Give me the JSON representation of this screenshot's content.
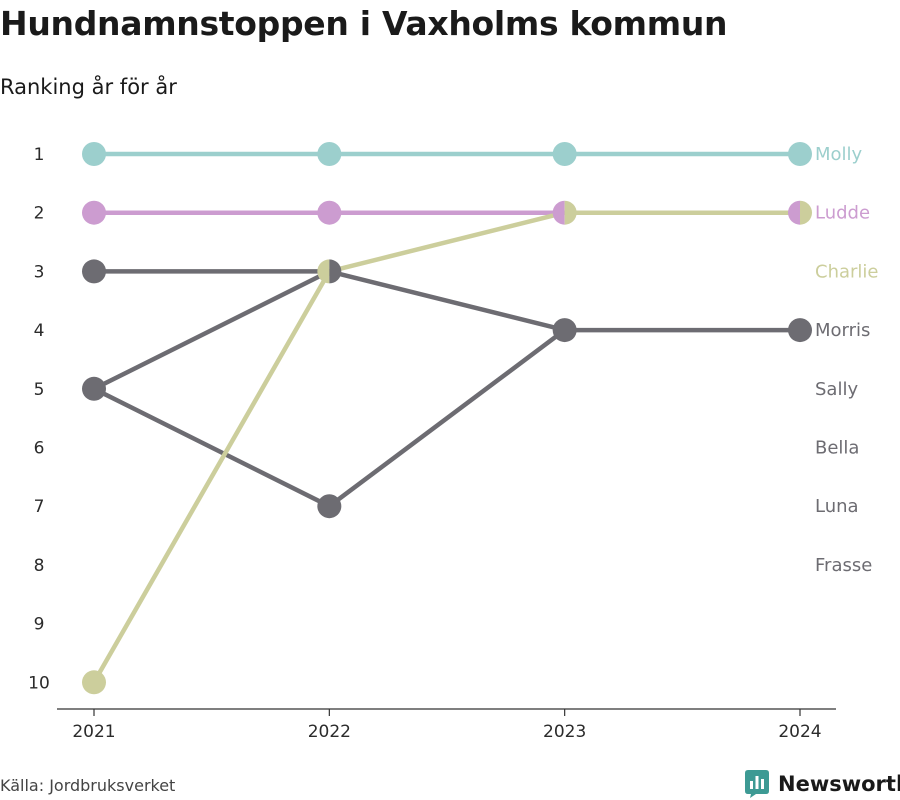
{
  "header": {
    "title": "Hundnamnstoppen i Vaxholms kommun",
    "subtitle": "Ranking år för år"
  },
  "footer": {
    "source": "Källa: Jordbruksverket",
    "brand": "Newsworthy",
    "brand_icon": "newsworthy-logo-icon",
    "brand_color": "#3d9a94"
  },
  "chart_data": {
    "type": "line",
    "x": [
      "2021",
      "2022",
      "2023",
      "2024"
    ],
    "y_ticks": [
      1,
      2,
      3,
      4,
      5,
      6,
      7,
      8,
      9,
      10
    ],
    "y_reversed": true,
    "ylim": [
      1,
      10
    ],
    "grid": false,
    "legend": "right-end-labels",
    "colors": {
      "grey": "#6d6c72"
    },
    "series": [
      {
        "name": "Molly",
        "color": "#9ccfcd",
        "values": [
          1,
          1,
          1,
          1
        ]
      },
      {
        "name": "Ludde",
        "color": "#cc9cd0",
        "values": [
          2,
          2,
          2,
          2
        ]
      },
      {
        "name": "Charlie",
        "color": "#ccce9c",
        "values": [
          10,
          3,
          2,
          2
        ]
      },
      {
        "name": "Morris",
        "color": "#6d6c72",
        "values": [
          3,
          3,
          4,
          4
        ]
      },
      {
        "name": "Sally",
        "color": "#6d6c72",
        "values": [
          5,
          3,
          null,
          null
        ]
      },
      {
        "name": "Bella",
        "color": "#6d6c72",
        "values": [
          5,
          7,
          4,
          null
        ]
      },
      {
        "name": "Luna",
        "color": "#6d6c72",
        "values": [
          null,
          null,
          null,
          null
        ]
      },
      {
        "name": "Frasse",
        "color": "#6d6c72",
        "values": [
          null,
          null,
          null,
          null
        ]
      }
    ],
    "end_labels": [
      {
        "name": "Molly",
        "color": "#9ccfcd",
        "rank": 1
      },
      {
        "name": "Ludde",
        "color": "#cc9cd0",
        "rank": 2
      },
      {
        "name": "Charlie",
        "color": "#ccce9c",
        "rank": 3
      },
      {
        "name": "Morris",
        "color": "#6d6c72",
        "rank": 4
      },
      {
        "name": "Sally",
        "color": "#6d6c72",
        "rank": 5
      },
      {
        "name": "Bella",
        "color": "#6d6c72",
        "rank": 6
      },
      {
        "name": "Luna",
        "color": "#6d6c72",
        "rank": 7
      },
      {
        "name": "Frasse",
        "color": "#6d6c72",
        "rank": 8
      }
    ]
  }
}
